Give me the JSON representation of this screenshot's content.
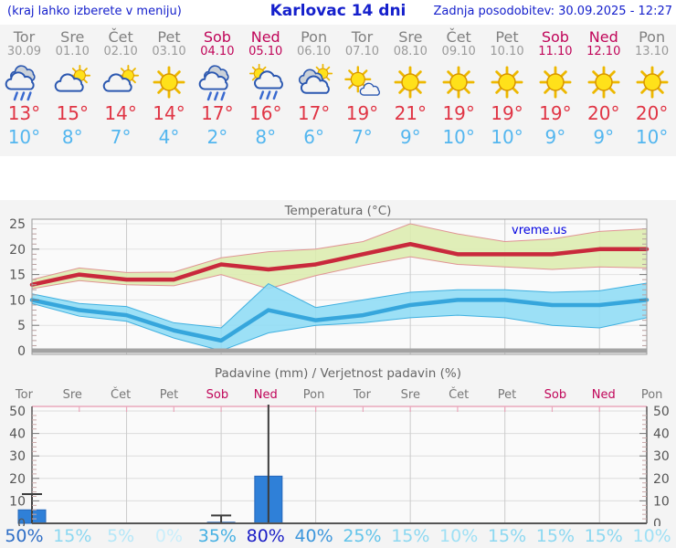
{
  "header": {
    "left_note": "(kraj lahko izberete v meniju)",
    "title": "Karlovac 14 dni",
    "last_update": "Zadnja posodobitev: 30.09.2025 - 12:27"
  },
  "colors": {
    "header_blue": "#1520cc",
    "weekday_gray": "#808080",
    "weekend_red": "#c00559",
    "high_red": "#e03545",
    "low_blue": "#53b6ef",
    "link_blue": "#0000e0",
    "panel_gray": "#f4f4f4"
  },
  "forecast": {
    "days": [
      {
        "name": "Tor",
        "date": "30.09",
        "weekend": false,
        "icon": "rain",
        "high": "13",
        "low": "10"
      },
      {
        "name": "Sre",
        "date": "01.10",
        "weekend": false,
        "icon": "sun-cloud",
        "high": "15",
        "low": "8"
      },
      {
        "name": "Čet",
        "date": "02.10",
        "weekend": false,
        "icon": "sun-cloud",
        "high": "14",
        "low": "7"
      },
      {
        "name": "Pet",
        "date": "03.10",
        "weekend": false,
        "icon": "sun",
        "high": "14",
        "low": "4"
      },
      {
        "name": "Sob",
        "date": "04.10",
        "weekend": true,
        "icon": "rain",
        "high": "17",
        "low": "2"
      },
      {
        "name": "Ned",
        "date": "05.10",
        "weekend": true,
        "icon": "sun-rain",
        "high": "16",
        "low": "8"
      },
      {
        "name": "Pon",
        "date": "06.10",
        "weekend": false,
        "icon": "cloud-sun",
        "high": "17",
        "low": "6"
      },
      {
        "name": "Tor",
        "date": "07.10",
        "weekend": false,
        "icon": "sun-small-cloud",
        "high": "19",
        "low": "7"
      },
      {
        "name": "Sre",
        "date": "08.10",
        "weekend": false,
        "icon": "sun",
        "high": "21",
        "low": "9"
      },
      {
        "name": "Čet",
        "date": "09.10",
        "weekend": false,
        "icon": "sun",
        "high": "19",
        "low": "10"
      },
      {
        "name": "Pet",
        "date": "10.10",
        "weekend": false,
        "icon": "sun",
        "high": "19",
        "low": "10"
      },
      {
        "name": "Sob",
        "date": "11.10",
        "weekend": true,
        "icon": "sun",
        "high": "19",
        "low": "9"
      },
      {
        "name": "Ned",
        "date": "12.10",
        "weekend": true,
        "icon": "sun",
        "high": "20",
        "low": "9"
      },
      {
        "name": "Pon",
        "date": "13.10",
        "weekend": false,
        "icon": "sun",
        "high": "20",
        "low": "10"
      }
    ]
  },
  "chart_data": [
    {
      "type": "line",
      "title": "Temperatura (°C)",
      "watermark": "vreme.us",
      "x_labels": [
        "Tor",
        "Sre",
        "Čet",
        "Pet",
        "Sob",
        "Ned",
        "Pon",
        "Tor",
        "Sre",
        "Čet",
        "Pet",
        "Sob",
        "Ned",
        "Pon"
      ],
      "ylim": [
        0,
        25
      ],
      "yticks": [
        0,
        5,
        10,
        15,
        20,
        25
      ],
      "grid": true,
      "series": [
        {
          "name": "max-temp",
          "color": "#c9293c",
          "band_color": "#dcecae",
          "band_edge": "#e09494",
          "values": [
            13,
            15,
            14,
            14,
            17,
            16,
            17,
            19,
            21,
            19,
            19,
            19,
            20,
            20
          ],
          "upper": [
            14,
            16.3,
            15.4,
            15.5,
            18.3,
            19.5,
            20,
            21.5,
            25,
            23,
            21.5,
            22,
            23.5,
            24
          ],
          "lower": [
            12.2,
            13.8,
            13,
            12.8,
            15,
            12.2,
            14.8,
            16.8,
            18.5,
            17,
            16.5,
            16,
            16.5,
            16.3
          ]
        },
        {
          "name": "min-temp",
          "color": "#36a6dc",
          "band_color": "#8edcf5",
          "band_edge": "#3fb0e0",
          "values": [
            10,
            8,
            7,
            4,
            2,
            8,
            6,
            7,
            9,
            10,
            10,
            9,
            9,
            10
          ],
          "upper": [
            11.2,
            9.3,
            8.7,
            5.5,
            4.5,
            13.2,
            8.5,
            10,
            11.5,
            12,
            12,
            11.5,
            11.8,
            13.3
          ],
          "lower": [
            9.3,
            6.8,
            5.8,
            2.5,
            0,
            3.5,
            5,
            5.5,
            6.5,
            7,
            6.5,
            5,
            4.5,
            6.5
          ]
        }
      ]
    },
    {
      "type": "bar",
      "title": "Padavine (mm) / Verjetnost padavin (%)",
      "categories": [
        "Tor",
        "Sre",
        "Čet",
        "Pet",
        "Sob",
        "Ned",
        "Pon",
        "Tor",
        "Sre",
        "Čet",
        "Pet",
        "Sob",
        "Ned",
        "Pon"
      ],
      "values": [
        6,
        0,
        0,
        0,
        0.5,
        21,
        0,
        0,
        0,
        0,
        0,
        0,
        0,
        0
      ],
      "whisker_max": [
        13,
        0,
        0,
        0,
        3.5,
        55,
        0,
        0,
        0,
        0,
        0,
        0,
        0,
        0
      ],
      "probabilities_pct": [
        50,
        15,
        5,
        0,
        35,
        80,
        40,
        25,
        15,
        10,
        15,
        15,
        15,
        10
      ],
      "ylim": [
        0,
        50
      ],
      "yticks": [
        0,
        10,
        20,
        30,
        40,
        50
      ],
      "bar_color": "#2f80d8",
      "prob_colors": {
        "0": "#c9eefb",
        "5": "#b4e7f8",
        "10": "#9fe0f5",
        "15": "#8cd8f1",
        "25": "#62c4ea",
        "35": "#45b0e3",
        "40": "#3c96dc",
        "50": "#2e6ec6",
        "80": "#1a1ec6"
      }
    }
  ]
}
